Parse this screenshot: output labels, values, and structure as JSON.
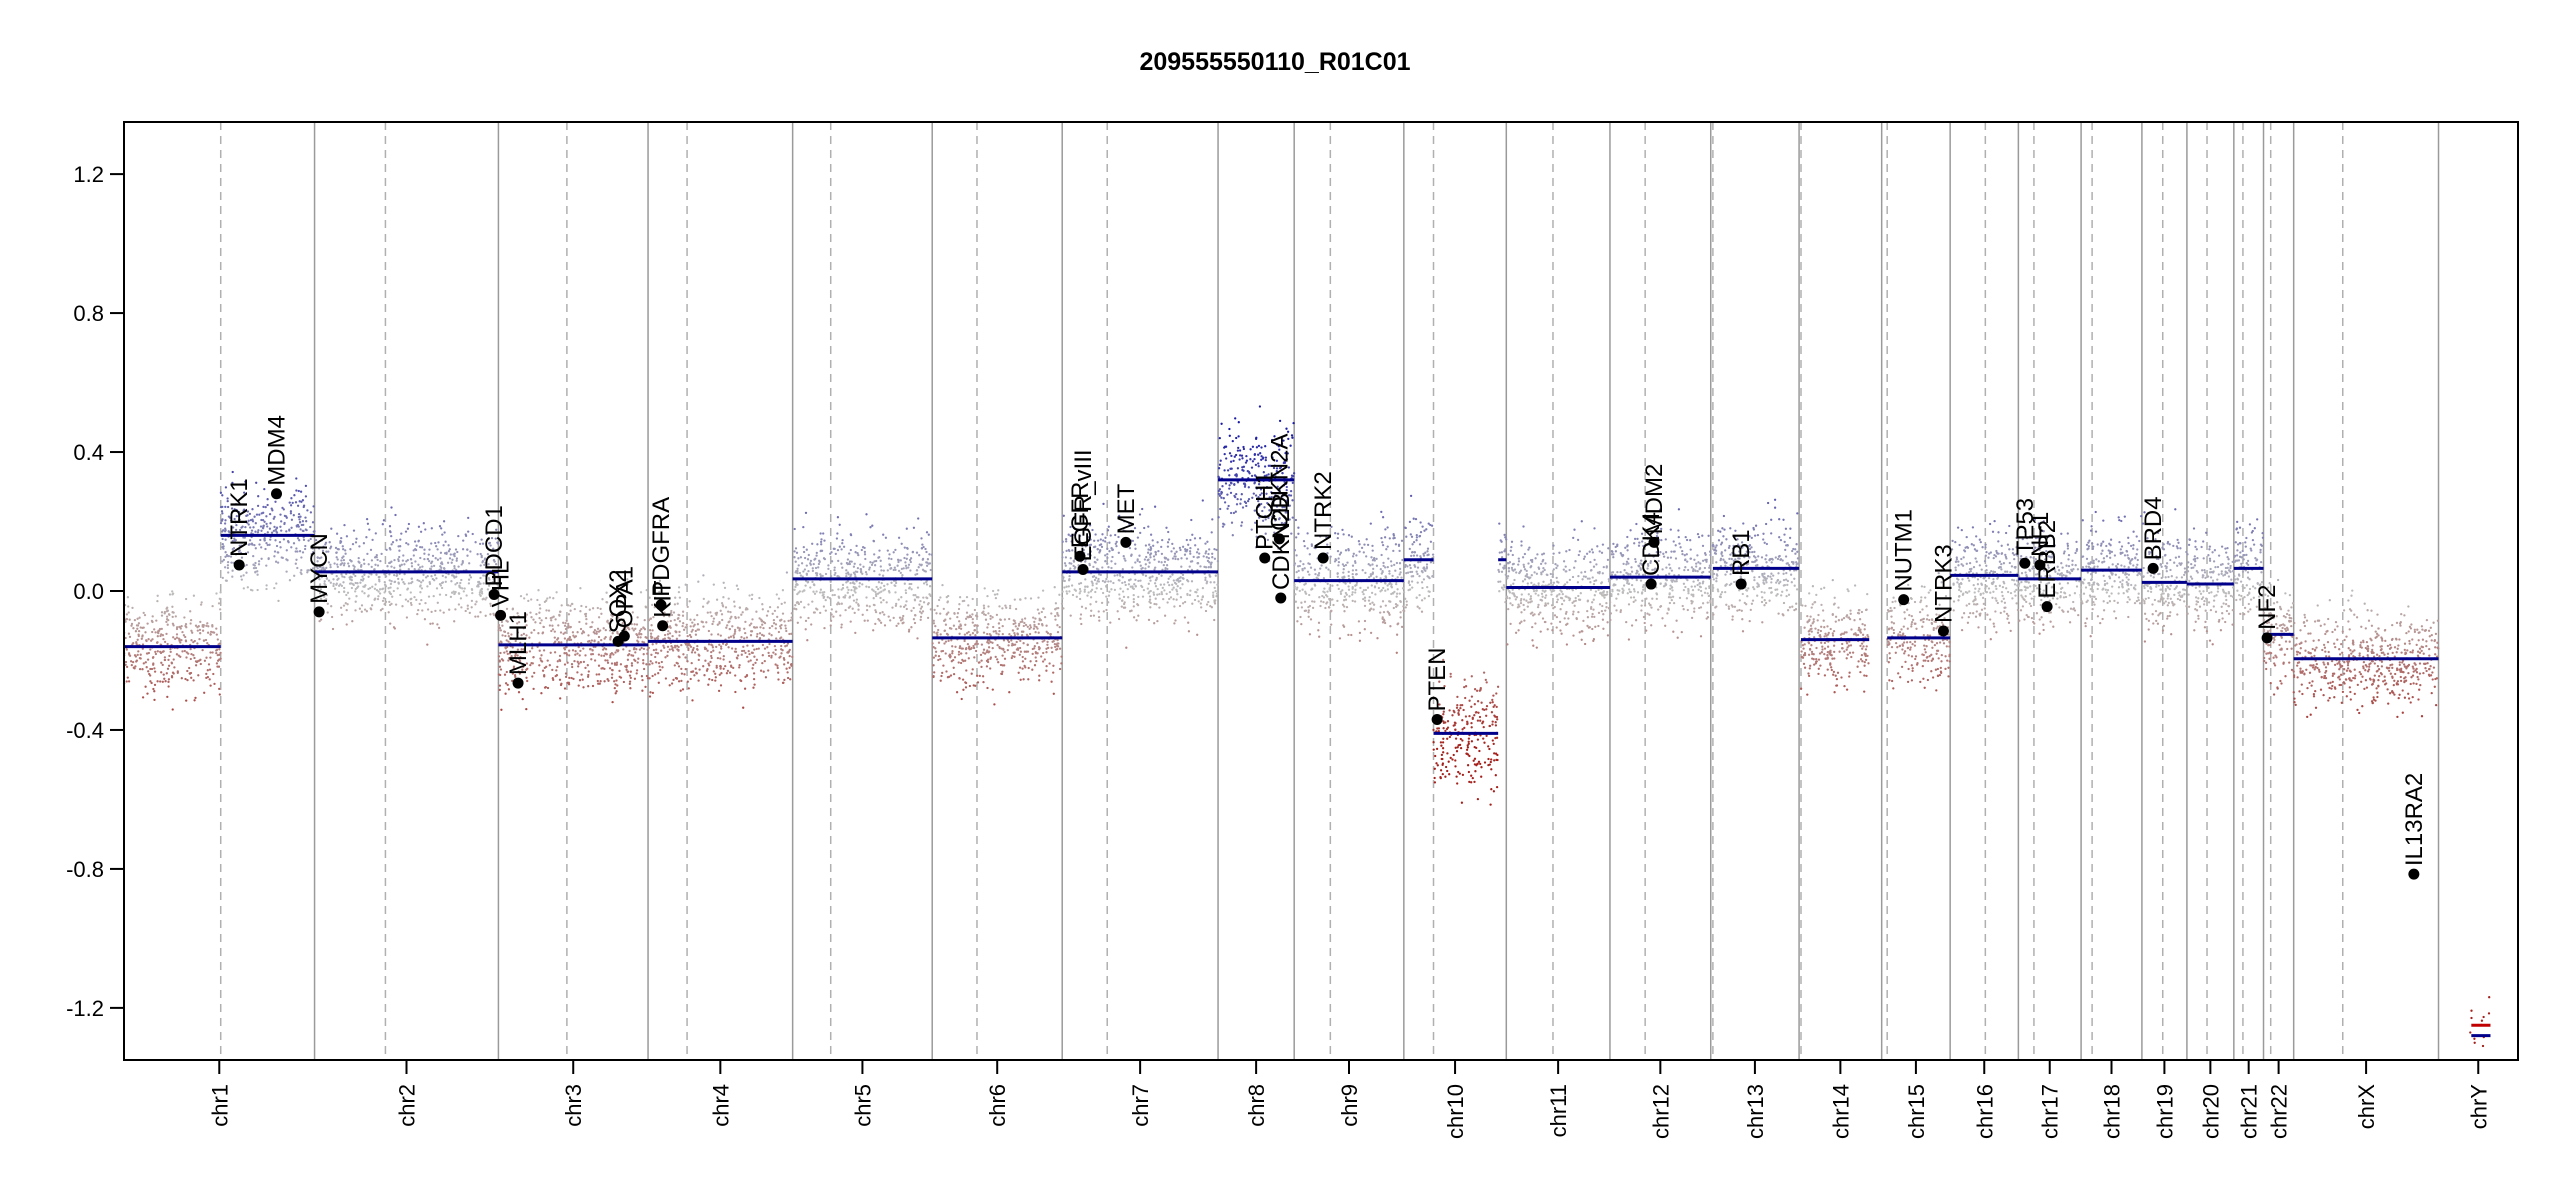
{
  "chart_data": {
    "type": "scatter",
    "title": "209555550110_R01C01",
    "xlabel": "",
    "ylabel": "",
    "ylim": [
      -1.35,
      1.35
    ],
    "yticks": [
      -1.2,
      -0.8,
      -0.4,
      0.0,
      0.4,
      0.8,
      1.2
    ],
    "ytick_labels": [
      "-1.2",
      "-0.8",
      "-0.4",
      "0.0",
      "0.4",
      "0.8",
      "1.2"
    ],
    "xlim": [
      0,
      1000
    ],
    "grid": false,
    "colors": {
      "gain": "#1a1aa6",
      "neutral": "#bdbdbd",
      "loss": "#a3201b",
      "segment": "#00008b",
      "segment_y": "#c00000",
      "boundary": "#9a9a9a",
      "centromere": "#b0b0b0"
    },
    "chromosomes": [
      {
        "name": "chr1",
        "start": 0,
        "end": 79.6,
        "centromere": 40.4,
        "segments": [
          {
            "x0": 0,
            "x1": 40.4,
            "y": -0.16
          },
          {
            "x0": 40.4,
            "x1": 79.6,
            "y": 0.16
          }
        ]
      },
      {
        "name": "chr2",
        "start": 79.6,
        "end": 156.4,
        "centromere": 109.2,
        "segments": [
          {
            "x0": 79.6,
            "x1": 156.4,
            "y": 0.055
          }
        ]
      },
      {
        "name": "chr3",
        "start": 156.4,
        "end": 218.9,
        "centromere": 185.0,
        "segments": [
          {
            "x0": 156.4,
            "x1": 218.9,
            "y": -0.155
          }
        ]
      },
      {
        "name": "chr4",
        "start": 218.9,
        "end": 279.3,
        "centromere": 235.2,
        "segments": [
          {
            "x0": 218.9,
            "x1": 279.3,
            "y": -0.145
          }
        ]
      },
      {
        "name": "chr5",
        "start": 279.3,
        "end": 337.6,
        "centromere": 295.2,
        "segments": [
          {
            "x0": 279.3,
            "x1": 337.6,
            "y": 0.035
          }
        ]
      },
      {
        "name": "chr6",
        "start": 337.6,
        "end": 391.9,
        "centromere": 356.3,
        "segments": [
          {
            "x0": 337.6,
            "x1": 391.9,
            "y": -0.135
          }
        ]
      },
      {
        "name": "chr7",
        "start": 391.9,
        "end": 457.0,
        "centromere": 410.7,
        "segments": [
          {
            "x0": 391.9,
            "x1": 457.0,
            "y": 0.055
          }
        ]
      },
      {
        "name": "chr8",
        "start": 457.0,
        "end": 488.8,
        "centromere": 457.0,
        "segments": [
          {
            "x0": 457.0,
            "x1": 488.8,
            "y": 0.32
          }
        ]
      },
      {
        "name": "chr9",
        "start": 488.8,
        "end": 534.6,
        "centromere": 503.9,
        "segments": [
          {
            "x0": 488.8,
            "x1": 534.6,
            "y": 0.03
          }
        ]
      },
      {
        "name": "chr10",
        "start": 534.6,
        "end": 577.4,
        "centromere": 547.0,
        "segments": [
          {
            "x0": 534.6,
            "x1": 547.0,
            "y": 0.09
          },
          {
            "x0": 547.0,
            "x1": 574.0,
            "y": -0.41
          },
          {
            "x0": 574.0,
            "x1": 577.4,
            "y": 0.09
          }
        ]
      },
      {
        "name": "chr11",
        "start": 577.4,
        "end": 620.7,
        "centromere": 596.9,
        "segments": [
          {
            "x0": 577.4,
            "x1": 620.7,
            "y": 0.01
          }
        ]
      },
      {
        "name": "chr12",
        "start": 620.7,
        "end": 662.8,
        "centromere": 635.4,
        "segments": [
          {
            "x0": 620.7,
            "x1": 662.8,
            "y": 0.04
          }
        ]
      },
      {
        "name": "chr13",
        "start": 662.8,
        "end": 699.7,
        "centromere": 663.7,
        "segments": [
          {
            "x0": 663.7,
            "x1": 699.7,
            "y": 0.065
          }
        ]
      },
      {
        "name": "chr14",
        "start": 699.7,
        "end": 734.2,
        "centromere": 700.5,
        "segments": [
          {
            "x0": 700.5,
            "x1": 729.0,
            "y": -0.14
          }
        ]
      },
      {
        "name": "chr15",
        "start": 734.2,
        "end": 762.8,
        "centromere": 736.5,
        "segments": [
          {
            "x0": 736.5,
            "x1": 762.8,
            "y": -0.135
          }
        ]
      },
      {
        "name": "chr16",
        "start": 762.8,
        "end": 791.3,
        "centromere": 777.5,
        "segments": [
          {
            "x0": 762.8,
            "x1": 791.3,
            "y": 0.045
          }
        ]
      },
      {
        "name": "chr17",
        "start": 791.3,
        "end": 817.5,
        "centromere": 797.8,
        "segments": [
          {
            "x0": 791.3,
            "x1": 817.5,
            "y": 0.035
          }
        ]
      },
      {
        "name": "chr18",
        "start": 817.5,
        "end": 842.9,
        "centromere": 822.1,
        "segments": [
          {
            "x0": 817.5,
            "x1": 842.9,
            "y": 0.06
          }
        ]
      },
      {
        "name": "chr19",
        "start": 842.9,
        "end": 861.7,
        "centromere": 851.6,
        "segments": [
          {
            "x0": 842.9,
            "x1": 861.7,
            "y": 0.025
          }
        ]
      },
      {
        "name": "chr20",
        "start": 861.7,
        "end": 881.3,
        "centromere": 870.1,
        "segments": [
          {
            "x0": 861.7,
            "x1": 881.3,
            "y": 0.02
          }
        ]
      },
      {
        "name": "chr21",
        "start": 881.3,
        "end": 893.7,
        "centromere": 885.1,
        "segments": [
          {
            "x0": 881.3,
            "x1": 893.7,
            "y": 0.065
          }
        ]
      },
      {
        "name": "chr22",
        "start": 893.7,
        "end": 906.3,
        "centromere": 896.7,
        "segments": [
          {
            "x0": 893.7,
            "x1": 906.3,
            "y": -0.125
          }
        ]
      },
      {
        "name": "chrX",
        "start": 906.3,
        "end": 966.8,
        "centromere": 926.8,
        "segments": [
          {
            "x0": 906.3,
            "x1": 966.8,
            "y": -0.195
          }
        ]
      },
      {
        "name": "chrY",
        "start": 966.8,
        "end": 1000,
        "centromere": 1000,
        "segments": [
          {
            "x0": 980.5,
            "x1": 988.5,
            "y": -1.28
          },
          {
            "x0": 980.5,
            "x1": 988.5,
            "y": -1.25
          }
        ]
      }
    ],
    "genes": [
      {
        "name": "NTRK1",
        "x": 48.1,
        "y": 0.075
      },
      {
        "name": "MDM4",
        "x": 63.7,
        "y": 0.28
      },
      {
        "name": "MYCN",
        "x": 81.5,
        "y": -0.06
      },
      {
        "name": "PDGFRA",
        "x": 224.3,
        "y": -0.04
      },
      {
        "name": "KIT",
        "x": 225.0,
        "y": -0.1
      },
      {
        "name": "PDCD1",
        "x": 154.6,
        "y": -0.01
      },
      {
        "name": "VHL",
        "x": 157.3,
        "y": -0.07
      },
      {
        "name": "MLH1",
        "x": 164.6,
        "y": -0.265
      },
      {
        "name": "SOX2",
        "x": 206.4,
        "y": -0.145
      },
      {
        "name": "OPA1",
        "x": 209.0,
        "y": -0.13
      },
      {
        "name": "EGFR",
        "x": 399.3,
        "y": 0.1
      },
      {
        "name": "EGFR_vIII",
        "x": 400.6,
        "y": 0.062
      },
      {
        "name": "MET",
        "x": 418.5,
        "y": 0.14
      },
      {
        "name": "CDKN2A",
        "x": 482.6,
        "y": 0.15
      },
      {
        "name": "CDKN2B",
        "x": 483.2,
        "y": -0.02
      },
      {
        "name": "PTCH1",
        "x": 476.5,
        "y": 0.095
      },
      {
        "name": "NTRK2",
        "x": 500.9,
        "y": 0.095
      },
      {
        "name": "PTEN",
        "x": 548.5,
        "y": -0.37
      },
      {
        "name": "CDK4",
        "x": 637.9,
        "y": 0.02
      },
      {
        "name": "MDM2",
        "x": 639.1,
        "y": 0.14
      },
      {
        "name": "RB1",
        "x": 675.5,
        "y": 0.02
      },
      {
        "name": "NUTM1",
        "x": 743.4,
        "y": -0.025
      },
      {
        "name": "NTRK3",
        "x": 760.0,
        "y": -0.115
      },
      {
        "name": "TP53",
        "x": 794.0,
        "y": 0.08
      },
      {
        "name": "NF1",
        "x": 800.3,
        "y": 0.075
      },
      {
        "name": "ERBB2",
        "x": 803.3,
        "y": -0.045
      },
      {
        "name": "BRD4",
        "x": 847.6,
        "y": 0.065
      },
      {
        "name": "NF2",
        "x": 895.2,
        "y": -0.135
      },
      {
        "name": "IL13RA2",
        "x": 956.5,
        "y": -0.815
      }
    ]
  }
}
